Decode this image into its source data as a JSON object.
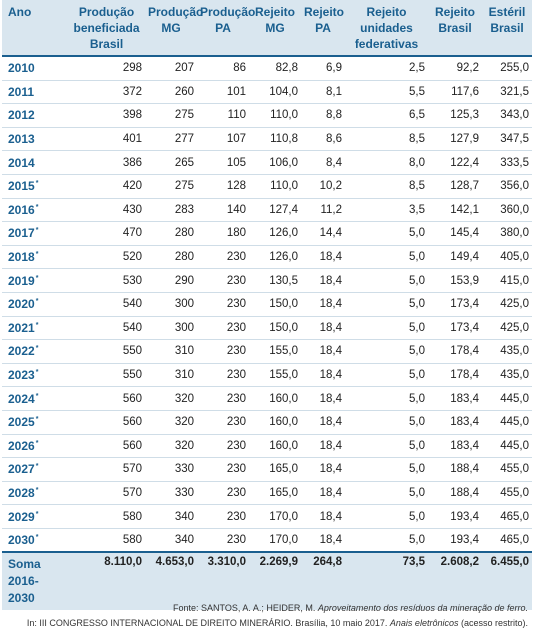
{
  "table": {
    "headers": [
      [
        "Ano"
      ],
      [
        "Produção",
        "beneficiada",
        "Brasil"
      ],
      [
        "Produção",
        "MG"
      ],
      [
        "Produção",
        "PA"
      ],
      [
        "Rejeito",
        "MG"
      ],
      [
        "Rejeito",
        "PA"
      ],
      [
        "Rejeito",
        "unidades",
        "federativas"
      ],
      [
        "Rejeito",
        "Brasil"
      ],
      [
        "Estéril",
        "Brasil"
      ]
    ],
    "rows": [
      {
        "year": "2010",
        "mark": "",
        "values": [
          "298",
          "207",
          "86",
          "82,8",
          "6,9",
          "2,5",
          "92,2",
          "255,0"
        ]
      },
      {
        "year": "2011",
        "mark": "",
        "values": [
          "372",
          "260",
          "101",
          "104,0",
          "8,1",
          "5,5",
          "117,6",
          "321,5"
        ]
      },
      {
        "year": "2012",
        "mark": "",
        "values": [
          "398",
          "275",
          "110",
          "110,0",
          "8,8",
          "6,5",
          "125,3",
          "343,0"
        ]
      },
      {
        "year": "2013",
        "mark": "",
        "values": [
          "401",
          "277",
          "107",
          "110,8",
          "8,6",
          "8,5",
          "127,9",
          "347,5"
        ]
      },
      {
        "year": "2014",
        "mark": "",
        "values": [
          "386",
          "265",
          "105",
          "106,0",
          "8,4",
          "8,0",
          "122,4",
          "333,5"
        ]
      },
      {
        "year": "2015",
        "mark": "*",
        "values": [
          "420",
          "275",
          "128",
          "110,0",
          "10,2",
          "8,5",
          "128,7",
          "356,0"
        ]
      },
      {
        "year": "2016",
        "mark": "*",
        "values": [
          "430",
          "283",
          "140",
          "127,4",
          "11,2",
          "3,5",
          "142,1",
          "360,0"
        ]
      },
      {
        "year": "2017",
        "mark": "*",
        "values": [
          "470",
          "280",
          "180",
          "126,0",
          "14,4",
          "5,0",
          "145,4",
          "380,0"
        ]
      },
      {
        "year": "2018",
        "mark": "*",
        "values": [
          "520",
          "280",
          "230",
          "126,0",
          "18,4",
          "5,0",
          "149,4",
          "405,0"
        ]
      },
      {
        "year": "2019",
        "mark": "*",
        "values": [
          "530",
          "290",
          "230",
          "130,5",
          "18,4",
          "5,0",
          "153,9",
          "415,0"
        ]
      },
      {
        "year": "2020",
        "mark": "*",
        "values": [
          "540",
          "300",
          "230",
          "150,0",
          "18,4",
          "5,0",
          "173,4",
          "425,0"
        ]
      },
      {
        "year": "2021",
        "mark": "*",
        "values": [
          "540",
          "300",
          "230",
          "150,0",
          "18,4",
          "5,0",
          "173,4",
          "425,0"
        ]
      },
      {
        "year": "2022",
        "mark": "*",
        "values": [
          "550",
          "310",
          "230",
          "155,0",
          "18,4",
          "5,0",
          "178,4",
          "435,0"
        ]
      },
      {
        "year": "2023",
        "mark": "*",
        "values": [
          "550",
          "310",
          "230",
          "155,0",
          "18,4",
          "5,0",
          "178,4",
          "435,0"
        ]
      },
      {
        "year": "2024",
        "mark": "*",
        "values": [
          "560",
          "320",
          "230",
          "160,0",
          "18,4",
          "5,0",
          "183,4",
          "445,0"
        ]
      },
      {
        "year": "2025",
        "mark": "*",
        "values": [
          "560",
          "320",
          "230",
          "160,0",
          "18,4",
          "5,0",
          "183,4",
          "445,0"
        ]
      },
      {
        "year": "2026",
        "mark": "*",
        "values": [
          "560",
          "320",
          "230",
          "160,0",
          "18,4",
          "5,0",
          "183,4",
          "445,0"
        ]
      },
      {
        "year": "2027",
        "mark": "*",
        "values": [
          "570",
          "330",
          "230",
          "165,0",
          "18,4",
          "5,0",
          "188,4",
          "455,0"
        ]
      },
      {
        "year": "2028",
        "mark": "*",
        "values": [
          "570",
          "330",
          "230",
          "165,0",
          "18,4",
          "5,0",
          "188,4",
          "455,0"
        ]
      },
      {
        "year": "2029",
        "mark": "*",
        "values": [
          "580",
          "340",
          "230",
          "170,0",
          "18,4",
          "5,0",
          "193,4",
          "465,0"
        ]
      },
      {
        "year": "2030",
        "mark": "*",
        "values": [
          "580",
          "340",
          "230",
          "170,0",
          "18,4",
          "5,0",
          "193,4",
          "465,0"
        ]
      }
    ],
    "total": {
      "label_line1": "Soma",
      "label_line2": "2016-2030",
      "values": [
        "8.110,0",
        "4.653,0",
        "3.310,0",
        "2.269,9",
        "264,8",
        "73,5",
        "2.608,2",
        "6.455,0"
      ]
    }
  },
  "source": {
    "line1_prefix": "Fonte: SANTOS, A. A.; HEIDER, M. ",
    "line1_italic": "Aproveitamento dos resíduos da mineração de ferro.",
    "line2_prefix": "In: III CONGRESSO INTERNACIONAL DE DIREITO MINERÁRIO. Brasília, 10 maio 2017. ",
    "line2_italic": "Anais eletrônicos",
    "line2_suffix": " (acesso restrito)."
  },
  "colors": {
    "header_text": "#1a5f8f",
    "header_background": "#d9e6ef",
    "row_rule": "#cfdde7"
  }
}
